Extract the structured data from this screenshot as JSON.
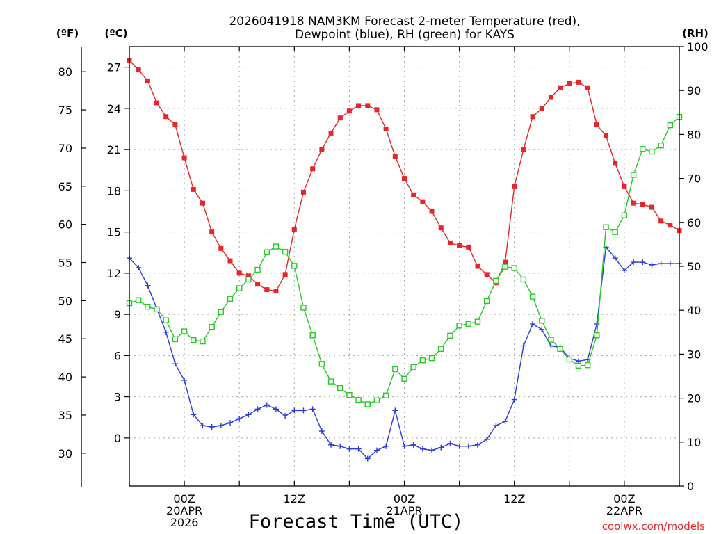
{
  "chart_data": {
    "type": "line",
    "title": "2026041918 NAM3KM Forecast 2-meter Temperature (red),",
    "subtitle": "Dewpoint (blue), RH (green) for KAYS",
    "xlabel": "Forecast Time (UTC)",
    "watermark": "coolwx.com/models",
    "axes": {
      "left_f_label": "(ºF)",
      "left_c_label": "(ºC)",
      "right_label": "(RH)",
      "x_range_hours": [
        -6,
        54
      ],
      "c_range": [
        -3.5,
        28.5
      ],
      "rh_range": [
        0,
        100
      ],
      "f_ticks": [
        30,
        35,
        40,
        45,
        50,
        55,
        60,
        65,
        70,
        75,
        80
      ],
      "c_ticks": [
        0,
        3,
        6,
        9,
        12,
        15,
        18,
        21,
        24,
        27
      ],
      "rh_ticks": [
        0,
        10,
        20,
        30,
        40,
        50,
        60,
        70,
        80,
        90,
        100
      ],
      "x_ticks": [
        {
          "hour": 0,
          "lines": [
            "00Z",
            "20APR",
            "2026"
          ]
        },
        {
          "hour": 12,
          "lines": [
            "12Z"
          ]
        },
        {
          "hour": 24,
          "lines": [
            "00Z",
            "21APR"
          ]
        },
        {
          "hour": 36,
          "lines": [
            "12Z"
          ]
        },
        {
          "hour": 48,
          "lines": [
            "00Z",
            "22APR"
          ]
        }
      ]
    },
    "x": [
      -6,
      -5,
      -4,
      -3,
      -2,
      -1,
      0,
      1,
      2,
      3,
      4,
      5,
      6,
      7,
      8,
      9,
      10,
      11,
      12,
      13,
      14,
      15,
      16,
      17,
      18,
      19,
      20,
      21,
      22,
      23,
      24,
      25,
      26,
      27,
      28,
      29,
      30,
      31,
      32,
      33,
      34,
      35,
      36,
      37,
      38,
      39,
      40,
      41,
      42,
      43,
      44,
      45,
      46,
      47,
      48,
      49,
      50,
      51,
      52,
      53,
      54
    ],
    "series": [
      {
        "name": "2-meter Temperature",
        "units": "C",
        "color": "#e8262a",
        "marker": "filled-square",
        "values": [
          27.5,
          26.8,
          26.0,
          24.4,
          23.4,
          22.8,
          20.4,
          18.1,
          17.1,
          15.0,
          13.8,
          12.9,
          12.0,
          11.8,
          11.2,
          10.8,
          10.7,
          11.9,
          15.2,
          17.9,
          19.6,
          21.0,
          22.2,
          23.3,
          23.8,
          24.2,
          24.2,
          23.9,
          22.5,
          20.5,
          18.9,
          17.7,
          17.2,
          16.5,
          15.3,
          14.2,
          14.0,
          13.9,
          12.5,
          11.9,
          11.3,
          12.8,
          18.3,
          21.0,
          23.4,
          24.0,
          24.8,
          25.5,
          25.8,
          25.9,
          25.5,
          22.8,
          22.0,
          20.0,
          18.3,
          17.1,
          17.0,
          16.8,
          15.8,
          15.5,
          15.1
        ]
      },
      {
        "name": "Dewpoint",
        "units": "C",
        "color": "#2a3be0",
        "marker": "plus",
        "values": [
          13.1,
          12.4,
          11.1,
          9.4,
          7.7,
          5.4,
          4.2,
          1.7,
          0.9,
          0.8,
          0.9,
          1.1,
          1.4,
          1.7,
          2.1,
          2.4,
          2.1,
          1.6,
          2.0,
          2.0,
          2.1,
          0.5,
          -0.5,
          -0.6,
          -0.8,
          -0.8,
          -1.5,
          -0.9,
          -0.6,
          2.0,
          -0.6,
          -0.5,
          -0.8,
          -0.9,
          -0.7,
          -0.4,
          -0.6,
          -0.6,
          -0.5,
          -0.1,
          0.9,
          1.2,
          2.8,
          6.7,
          8.3,
          7.9,
          6.7,
          6.6,
          5.8,
          5.6,
          5.7,
          8.3,
          13.9,
          13.1,
          12.2,
          12.8,
          12.8,
          12.6,
          12.7,
          12.7,
          12.7
        ]
      },
      {
        "name": "RH",
        "units": "%",
        "color": "#22cc22",
        "marker": "open-square",
        "values": [
          41.6,
          42.3,
          40.8,
          40.2,
          37.7,
          33.4,
          35.2,
          33.2,
          32.9,
          36.2,
          39.6,
          42.6,
          45.0,
          47.0,
          49.2,
          53.2,
          54.5,
          53.3,
          50.1,
          40.6,
          34.3,
          27.8,
          23.8,
          22.3,
          20.7,
          19.6,
          18.6,
          19.5,
          20.6,
          26.6,
          24.4,
          27.1,
          28.6,
          29.1,
          31.2,
          34.2,
          36.5,
          36.9,
          37.4,
          42.1,
          46.7,
          49.9,
          49.6,
          47.0,
          43.1,
          37.6,
          33.3,
          31.2,
          28.8,
          27.4,
          27.5,
          34.3,
          58.9,
          57.8,
          61.6,
          70.8,
          76.7,
          76.1,
          77.5,
          82.1,
          84.0
        ]
      }
    ]
  }
}
